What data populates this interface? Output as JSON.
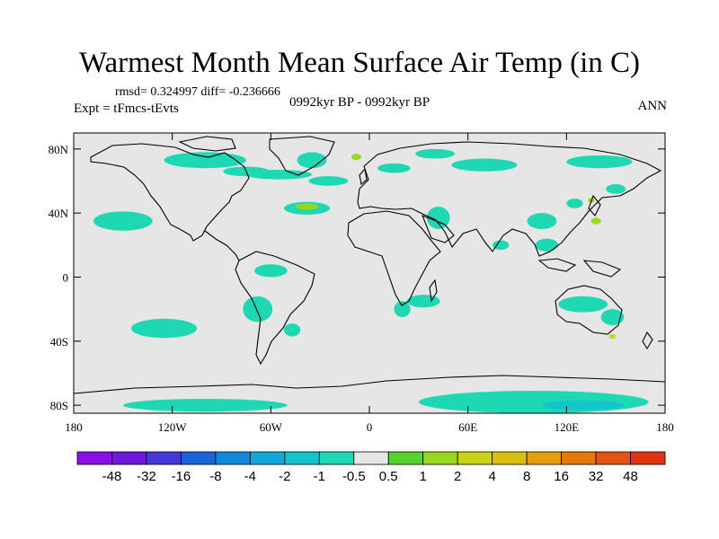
{
  "title": "Warmest Month Mean Surface Air Temp (in C)",
  "stats_line": "rmsd= 0.324997 diff= -0.236666",
  "experiment": "Expt = tFmcs-tEvts",
  "period": "0992kyr BP - 0992kyr BP",
  "season": "ANN",
  "map": {
    "lat_labels": [
      "80N",
      "40N",
      "0",
      "40S",
      "80S"
    ],
    "lon_labels": [
      "180",
      "120W",
      "60W",
      "0",
      "60E",
      "120E",
      "180"
    ],
    "background_color": "#e6e6e6",
    "anomaly_regions": [
      {
        "lon": -35,
        "lat": 73,
        "rx": 9,
        "ry": 5,
        "level": "-0.5"
      },
      {
        "lon": -75,
        "lat": 66,
        "rx": 14,
        "ry": 3,
        "level": "-0.5"
      },
      {
        "lon": -100,
        "lat": 73,
        "rx": 25,
        "ry": 5,
        "level": "-0.5"
      },
      {
        "lon": -55,
        "lat": 64,
        "rx": 20,
        "ry": 3,
        "level": "-0.5"
      },
      {
        "lon": -38,
        "lat": 43,
        "rx": 14,
        "ry": 4,
        "level": "-0.5"
      },
      {
        "lon": -38,
        "lat": 44,
        "rx": 7,
        "ry": 2,
        "level": "1"
      },
      {
        "lon": -8,
        "lat": 75,
        "rx": 3,
        "ry": 2,
        "level": "1"
      },
      {
        "lon": -25,
        "lat": 60,
        "rx": 12,
        "ry": 3,
        "level": "-0.5"
      },
      {
        "lon": 15,
        "lat": 68,
        "rx": 10,
        "ry": 3,
        "level": "-0.5"
      },
      {
        "lon": 40,
        "lat": 77,
        "rx": 12,
        "ry": 3,
        "level": "-0.5"
      },
      {
        "lon": 70,
        "lat": 70,
        "rx": 20,
        "ry": 4,
        "level": "-0.5"
      },
      {
        "lon": 140,
        "lat": 72,
        "rx": 20,
        "ry": 4,
        "level": "-0.5"
      },
      {
        "lon": -150,
        "lat": 35,
        "rx": 18,
        "ry": 6,
        "level": "-0.5"
      },
      {
        "lon": 42,
        "lat": 37,
        "rx": 7,
        "ry": 7,
        "level": "-0.5"
      },
      {
        "lon": 80,
        "lat": 20,
        "rx": 5,
        "ry": 3,
        "level": "-0.5"
      },
      {
        "lon": 105,
        "lat": 35,
        "rx": 9,
        "ry": 5,
        "level": "-0.5"
      },
      {
        "lon": 108,
        "lat": 20,
        "rx": 7,
        "ry": 4,
        "level": "-0.5"
      },
      {
        "lon": 125,
        "lat": 46,
        "rx": 5,
        "ry": 3,
        "level": "-0.5"
      },
      {
        "lon": 135,
        "lat": 48,
        "rx": 2,
        "ry": 1.5,
        "level": "1"
      },
      {
        "lon": 138,
        "lat": 35,
        "rx": 3,
        "ry": 2,
        "level": "1"
      },
      {
        "lon": 150,
        "lat": 55,
        "rx": 6,
        "ry": 3,
        "level": "-0.5"
      },
      {
        "lon": -60,
        "lat": 4,
        "rx": 10,
        "ry": 4,
        "level": "-0.5"
      },
      {
        "lon": -68,
        "lat": -20,
        "rx": 9,
        "ry": 8,
        "level": "-0.5"
      },
      {
        "lon": -47,
        "lat": -33,
        "rx": 5,
        "ry": 4,
        "level": "-0.5"
      },
      {
        "lon": -125,
        "lat": -32,
        "rx": 20,
        "ry": 6,
        "level": "-0.5"
      },
      {
        "lon": 33,
        "lat": -15,
        "rx": 10,
        "ry": 4,
        "level": "-0.5"
      },
      {
        "lon": 20,
        "lat": -20,
        "rx": 5,
        "ry": 5,
        "level": "-0.5"
      },
      {
        "lon": 130,
        "lat": -17,
        "rx": 15,
        "ry": 5,
        "level": "-0.5"
      },
      {
        "lon": 148,
        "lat": -25,
        "rx": 7,
        "ry": 5,
        "level": "-0.5"
      },
      {
        "lon": 148,
        "lat": -37,
        "rx": 2,
        "ry": 1.5,
        "level": "2"
      },
      {
        "lon": -100,
        "lat": -80,
        "rx": 50,
        "ry": 4,
        "level": "-0.5"
      },
      {
        "lon": 100,
        "lat": -78,
        "rx": 70,
        "ry": 7,
        "level": "-0.5"
      },
      {
        "lon": 130,
        "lat": -80,
        "rx": 25,
        "ry": 3,
        "level": "-1"
      }
    ]
  },
  "colorbar": {
    "labels": [
      "-48",
      "-32",
      "-16",
      "-8",
      "-4",
      "-2",
      "-1",
      "-0.5",
      "0.5",
      "1",
      "2",
      "4",
      "8",
      "16",
      "32",
      "48"
    ],
    "colors": [
      "#8a10e8",
      "#6d18dc",
      "#4438dc",
      "#1c62d8",
      "#1288d8",
      "#10a8d8",
      "#12c4cc",
      "#1ed8b4",
      "#e6e6e6",
      "#56d030",
      "#96d81c",
      "#c8d414",
      "#dcc010",
      "#e4a00c",
      "#e47808",
      "#e45410",
      "#e03414"
    ]
  }
}
